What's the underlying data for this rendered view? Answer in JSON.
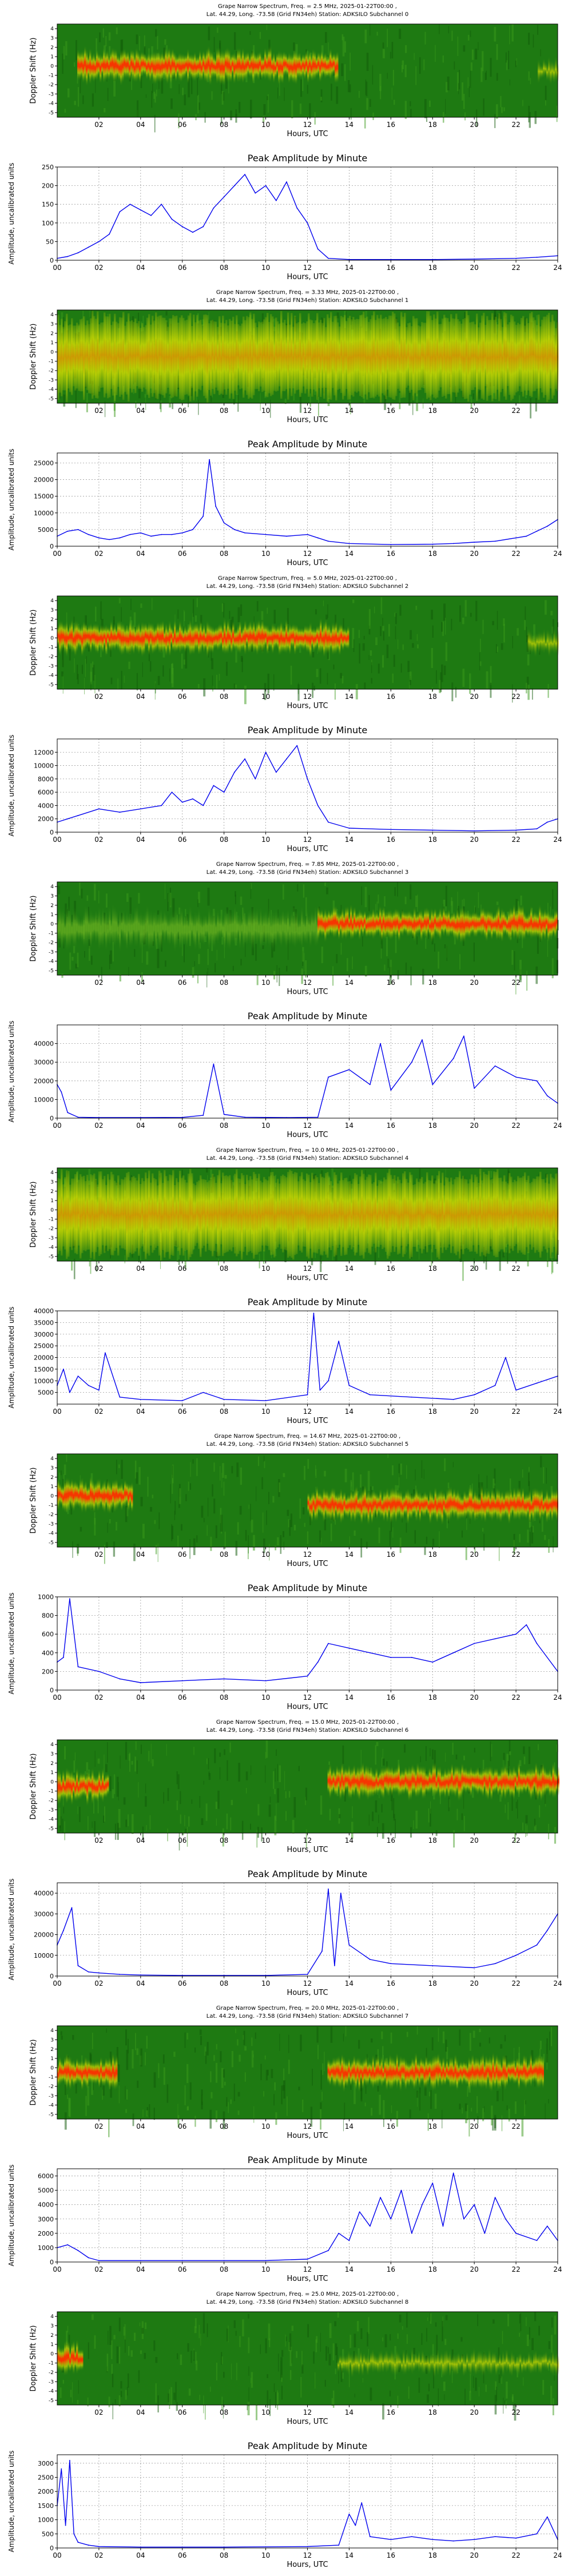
{
  "common": {
    "spectrum_ylabel": "Doppler Shift (Hz)",
    "xlabel": "Hours, UTC",
    "amp_title": "Peak Amplitude by Minute",
    "amp_ylabel": "Amplitude, uncalibrated units",
    "spec_yticks": [
      "-5",
      "-4",
      "-3",
      "-2",
      "-1",
      "0",
      "1",
      "2",
      "3",
      "4"
    ],
    "spec_xticks": [
      "02",
      "04",
      "06",
      "08",
      "10",
      "12",
      "14",
      "16",
      "18",
      "20",
      "22"
    ],
    "amp_xticks": [
      "00",
      "02",
      "04",
      "06",
      "08",
      "10",
      "12",
      "14",
      "16",
      "18",
      "20",
      "22",
      "24"
    ],
    "colors": {
      "line": "#0000ee",
      "spec_low": "#1e7a12",
      "spec_mid": "#e8e800",
      "spec_high": "#ff3300"
    }
  },
  "panels": [
    {
      "spec_title_1": "Grape Narrow Spectrum, Freq. = 2.5 MHz, 2025-01-22T00:00 ,",
      "spec_title_2": "Lat. 44.29, Long. -73.58 (Grid FN34eh) Station: ADKSILO Subchannel 0",
      "amp_yticks": [
        0,
        50,
        100,
        150,
        200,
        250
      ],
      "chart_data": {
        "type": "line",
        "title": "Peak Amplitude by Minute",
        "xlabel": "Hours, UTC",
        "ylabel": "Amplitude, uncalibrated units",
        "xlim": [
          0,
          24
        ],
        "ylim": [
          0,
          250
        ],
        "x": [
          0,
          0.5,
          1,
          1.5,
          2,
          2.5,
          3,
          3.5,
          4,
          4.5,
          5,
          5.5,
          6,
          6.5,
          7,
          7.5,
          8,
          8.5,
          9,
          9.5,
          10,
          10.5,
          11,
          11.5,
          12,
          12.5,
          13,
          14,
          16,
          18,
          20,
          22,
          23,
          24
        ],
        "y": [
          5,
          10,
          20,
          35,
          50,
          70,
          130,
          150,
          135,
          120,
          150,
          110,
          90,
          75,
          90,
          140,
          170,
          200,
          230,
          180,
          200,
          160,
          210,
          140,
          100,
          30,
          5,
          2,
          2,
          2,
          3,
          5,
          8,
          12
        ]
      },
      "spec_bands": [
        {
          "start": 0.04,
          "end": 0.56,
          "center": 0.45,
          "type": "ridge"
        },
        {
          "start": 0.96,
          "end": 1.0,
          "center": 0.5,
          "type": "faint"
        }
      ]
    },
    {
      "spec_title_1": "Grape Narrow Spectrum, Freq. = 3.33 MHz, 2025-01-22T00:00 ,",
      "spec_title_2": "Lat. 44.29, Long. -73.58 (Grid FN34eh) Station: ADKSILO Subchannel 1",
      "amp_yticks": [
        0,
        5000,
        10000,
        15000,
        20000,
        25000
      ],
      "chart_data": {
        "type": "line",
        "title": "Peak Amplitude by Minute",
        "xlabel": "Hours, UTC",
        "ylabel": "Amplitude, uncalibrated units",
        "xlim": [
          0,
          24
        ],
        "ylim": [
          0,
          28000
        ],
        "x": [
          0,
          0.5,
          1,
          1.5,
          2,
          2.5,
          3,
          3.5,
          4,
          4.5,
          5,
          5.5,
          6,
          6.5,
          7,
          7.3,
          7.6,
          8,
          8.5,
          9,
          10,
          11,
          12,
          12.5,
          13,
          14,
          16,
          18,
          19,
          20,
          21,
          22,
          22.5,
          23,
          23.5,
          24
        ],
        "y": [
          3000,
          4500,
          5000,
          3500,
          2500,
          2000,
          2500,
          3500,
          4000,
          3000,
          3500,
          3500,
          4000,
          5000,
          9000,
          26000,
          12000,
          7000,
          5000,
          4000,
          3500,
          3000,
          3500,
          2500,
          1500,
          800,
          500,
          600,
          800,
          1200,
          1500,
          2500,
          3000,
          4500,
          6000,
          8000
        ]
      },
      "spec_bands": [
        {
          "start": 0.0,
          "end": 1.0,
          "center": 0.5,
          "type": "wide"
        }
      ]
    },
    {
      "spec_title_1": "Grape Narrow Spectrum, Freq. = 5.0 MHz, 2025-01-22T00:00 ,",
      "spec_title_2": "Lat. 44.29, Long. -73.58 (Grid FN34eh) Station: ADKSILO Subchannel 2",
      "amp_yticks": [
        0,
        2000,
        4000,
        6000,
        8000,
        10000,
        12000
      ],
      "chart_data": {
        "type": "line",
        "title": "Peak Amplitude by Minute",
        "xlabel": "Hours, UTC",
        "ylabel": "Amplitude, uncalibrated units",
        "xlim": [
          0,
          24
        ],
        "ylim": [
          0,
          14000
        ],
        "x": [
          0,
          0.5,
          1,
          2,
          3,
          4,
          5,
          5.5,
          6,
          6.5,
          7,
          7.5,
          8,
          8.5,
          9,
          9.5,
          10,
          10.5,
          11,
          11.5,
          12,
          12.5,
          13,
          14,
          16,
          18,
          20,
          22,
          23,
          23.5,
          24
        ],
        "y": [
          1500,
          2000,
          2500,
          3500,
          3000,
          3500,
          4000,
          6000,
          4500,
          5000,
          4000,
          7000,
          6000,
          9000,
          11000,
          8000,
          12000,
          9000,
          11000,
          13000,
          8000,
          4000,
          1500,
          600,
          400,
          300,
          200,
          300,
          500,
          1500,
          2000
        ]
      },
      "spec_bands": [
        {
          "start": 0.0,
          "end": 0.58,
          "center": 0.45,
          "type": "ridge"
        },
        {
          "start": 0.94,
          "end": 1.0,
          "center": 0.5,
          "type": "faint"
        }
      ]
    },
    {
      "spec_title_1": "Grape Narrow Spectrum, Freq. = 7.85 MHz, 2025-01-22T00:00 ,",
      "spec_title_2": "Lat. 44.29, Long. -73.58 (Grid FN34eh) Station: ADKSILO Subchannel 3",
      "amp_yticks": [
        0,
        10000,
        20000,
        30000,
        40000
      ],
      "chart_data": {
        "type": "line",
        "title": "Peak Amplitude by Minute",
        "xlabel": "Hours, UTC",
        "ylabel": "Amplitude, uncalibrated units",
        "xlim": [
          0,
          24
        ],
        "ylim": [
          0,
          50000
        ],
        "x": [
          0,
          0.2,
          0.5,
          1,
          2,
          4,
          6,
          7,
          7.5,
          8,
          9,
          11,
          12.5,
          13,
          14,
          15,
          15.5,
          16,
          17,
          17.5,
          18,
          19,
          19.5,
          20,
          21,
          22,
          23,
          23.5,
          24
        ],
        "y": [
          18000,
          14000,
          3000,
          500,
          300,
          300,
          400,
          1500,
          29000,
          2000,
          500,
          300,
          500,
          22000,
          26000,
          18000,
          40000,
          15000,
          30000,
          42000,
          18000,
          32000,
          44000,
          16000,
          28000,
          22000,
          20000,
          12000,
          8000
        ]
      },
      "spec_bands": [
        {
          "start": 0.0,
          "end": 0.52,
          "center": 0.5,
          "type": "dim"
        },
        {
          "start": 0.52,
          "end": 1.0,
          "center": 0.45,
          "type": "ridge"
        }
      ]
    },
    {
      "spec_title_1": "Grape Narrow Spectrum, Freq. = 10.0 MHz, 2025-01-22T00:00 ,",
      "spec_title_2": "Lat. 44.29, Long. -73.58 (Grid FN34eh) Station: ADKSILO Subchannel 4",
      "amp_yticks": [
        5000,
        10000,
        15000,
        20000,
        25000,
        30000,
        35000,
        40000
      ],
      "chart_data": {
        "type": "line",
        "title": "Peak Amplitude by Minute",
        "xlabel": "Hours, UTC",
        "ylabel": "Amplitude, uncalibrated units",
        "xlim": [
          0,
          24
        ],
        "ylim": [
          0,
          40000
        ],
        "x": [
          0,
          0.3,
          0.6,
          1,
          1.5,
          2,
          2.3,
          3,
          4,
          6,
          7,
          8,
          10,
          12,
          12.3,
          12.6,
          13,
          13.5,
          14,
          15,
          17,
          19,
          20,
          21,
          21.5,
          22,
          23,
          24
        ],
        "y": [
          8000,
          15000,
          5000,
          12000,
          8000,
          6000,
          22000,
          3000,
          2000,
          1500,
          5000,
          2000,
          1500,
          4000,
          39000,
          6000,
          10000,
          27000,
          8000,
          4000,
          3000,
          2000,
          4000,
          8000,
          20000,
          6000,
          9000,
          12000
        ]
      },
      "spec_bands": [
        {
          "start": 0.0,
          "end": 1.0,
          "center": 0.5,
          "type": "wide"
        }
      ]
    },
    {
      "spec_title_1": "Grape Narrow Spectrum, Freq. = 14.67 MHz, 2025-01-22T00:00 ,",
      "spec_title_2": "Lat. 44.29, Long. -73.58 (Grid FN34eh) Station: ADKSILO Subchannel 5",
      "amp_yticks": [
        0,
        200,
        400,
        600,
        800,
        1000
      ],
      "chart_data": {
        "type": "line",
        "title": "Peak Amplitude by Minute",
        "xlabel": "Hours, UTC",
        "ylabel": "Amplitude, uncalibrated units",
        "xlim": [
          0,
          24
        ],
        "ylim": [
          0,
          1000
        ],
        "x": [
          0,
          0.3,
          0.6,
          1,
          2,
          3,
          4,
          6,
          8,
          10,
          12,
          12.5,
          13,
          14,
          15,
          16,
          17,
          18,
          19,
          20,
          21,
          22,
          22.5,
          23,
          24
        ],
        "y": [
          300,
          350,
          980,
          250,
          200,
          120,
          80,
          100,
          120,
          100,
          150,
          300,
          500,
          450,
          400,
          350,
          350,
          300,
          400,
          500,
          550,
          600,
          700,
          500,
          200
        ]
      },
      "spec_bands": [
        {
          "start": 0.0,
          "end": 0.15,
          "center": 0.45,
          "type": "ridge"
        },
        {
          "start": 0.5,
          "end": 1.0,
          "center": 0.55,
          "type": "ridge"
        }
      ]
    },
    {
      "spec_title_1": "Grape Narrow Spectrum, Freq. = 15.0 MHz, 2025-01-22T00:00 ,",
      "spec_title_2": "Lat. 44.29, Long. -73.58 (Grid FN34eh) Station: ADKSILO Subchannel 6",
      "amp_yticks": [
        0,
        10000,
        20000,
        30000,
        40000
      ],
      "chart_data": {
        "type": "line",
        "title": "Peak Amplitude by Minute",
        "xlabel": "Hours, UTC",
        "ylabel": "Amplitude, uncalibrated units",
        "xlim": [
          0,
          24
        ],
        "ylim": [
          0,
          45000
        ],
        "x": [
          0,
          0.3,
          0.7,
          1,
          1.5,
          2,
          3,
          4,
          6,
          8,
          10,
          12,
          12.7,
          13,
          13.3,
          13.6,
          14,
          15,
          16,
          18,
          20,
          21,
          22,
          23,
          23.5,
          24
        ],
        "y": [
          15000,
          22000,
          33000,
          5000,
          2000,
          1500,
          800,
          500,
          300,
          300,
          300,
          800,
          12000,
          42000,
          5000,
          40000,
          15000,
          8000,
          6000,
          5000,
          4000,
          6000,
          10000,
          15000,
          22000,
          30000
        ]
      },
      "spec_bands": [
        {
          "start": 0.0,
          "end": 0.1,
          "center": 0.5,
          "type": "ridge"
        },
        {
          "start": 0.54,
          "end": 1.0,
          "center": 0.45,
          "type": "ridge"
        }
      ]
    },
    {
      "spec_title_1": "Grape Narrow Spectrum, Freq. = 20.0 MHz, 2025-01-22T00:00 ,",
      "spec_title_2": "Lat. 44.29, Long. -73.58 (Grid FN34eh) Station: ADKSILO Subchannel 7",
      "amp_yticks": [
        0,
        1000,
        2000,
        3000,
        4000,
        5000,
        6000
      ],
      "chart_data": {
        "type": "line",
        "title": "Peak Amplitude by Minute",
        "xlabel": "Hours, UTC",
        "ylabel": "Amplitude, uncalibrated units",
        "xlim": [
          0,
          24
        ],
        "ylim": [
          0,
          6500
        ],
        "x": [
          0,
          0.5,
          1,
          1.5,
          2,
          4,
          6,
          8,
          10,
          12,
          13,
          13.5,
          14,
          14.5,
          15,
          15.5,
          16,
          16.5,
          17,
          17.5,
          18,
          18.5,
          19,
          19.5,
          20,
          20.5,
          21,
          21.5,
          22,
          23,
          23.5,
          24
        ],
        "y": [
          1000,
          1200,
          800,
          300,
          100,
          100,
          100,
          100,
          100,
          200,
          800,
          2000,
          1500,
          3500,
          2500,
          4500,
          3000,
          5000,
          2000,
          4000,
          5500,
          2500,
          6200,
          3000,
          4000,
          2000,
          4500,
          3000,
          2000,
          1500,
          2500,
          1500
        ]
      },
      "spec_bands": [
        {
          "start": 0.0,
          "end": 0.12,
          "center": 0.5,
          "type": "ridge"
        },
        {
          "start": 0.54,
          "end": 0.97,
          "center": 0.5,
          "type": "ridge"
        }
      ]
    },
    {
      "spec_title_1": "Grape Narrow Spectrum, Freq. = 25.0 MHz, 2025-01-22T00:00 ,",
      "spec_title_2": "Lat. 44.29, Long. -73.58 (Grid FN34eh) Station: ADKSILO Subchannel 8",
      "amp_yticks": [
        0,
        500,
        1000,
        1500,
        2000,
        2500,
        3000
      ],
      "chart_data": {
        "type": "line",
        "title": "Peak Amplitude by Minute",
        "xlabel": "Hours, UTC",
        "ylabel": "Amplitude, uncalibrated units",
        "xlim": [
          0,
          24
        ],
        "ylim": [
          0,
          3300
        ],
        "x": [
          0,
          0.2,
          0.4,
          0.6,
          0.8,
          1,
          1.5,
          2,
          4,
          8,
          12,
          13.5,
          14,
          14.3,
          14.6,
          15,
          16,
          17,
          18,
          19,
          20,
          21,
          22,
          23,
          23.5,
          24
        ],
        "y": [
          1500,
          2800,
          800,
          3100,
          500,
          200,
          100,
          50,
          30,
          30,
          50,
          100,
          1200,
          800,
          1600,
          400,
          300,
          400,
          300,
          250,
          300,
          400,
          350,
          500,
          1100,
          300
        ]
      },
      "spec_bands": [
        {
          "start": 0.0,
          "end": 0.05,
          "center": 0.5,
          "type": "ridge"
        },
        {
          "start": 0.56,
          "end": 1.0,
          "center": 0.55,
          "type": "faint"
        }
      ]
    }
  ]
}
